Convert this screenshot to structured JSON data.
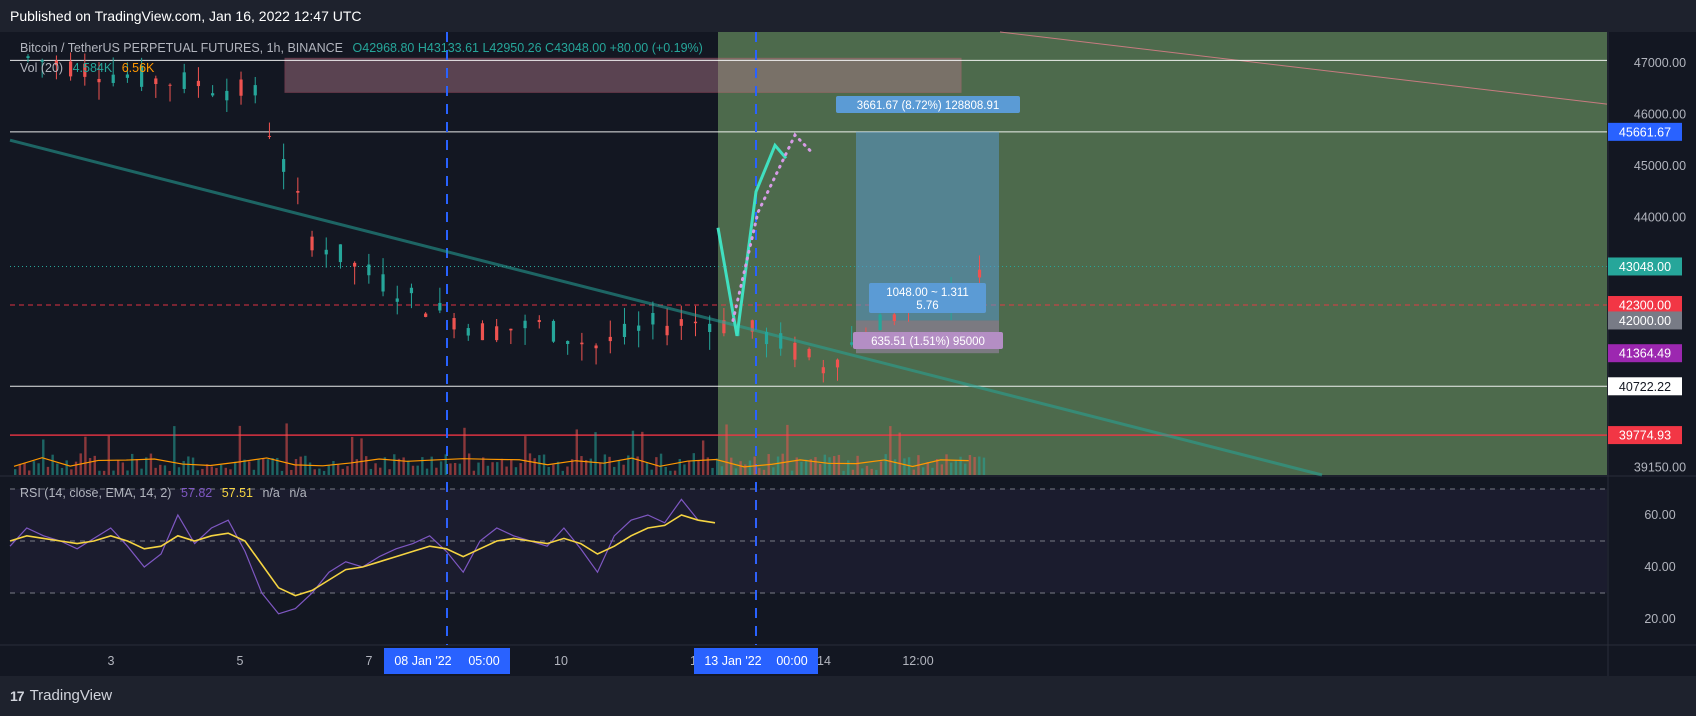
{
  "header": {
    "published": "Published on TradingView.com, Jan 16, 2022 12:47 UTC"
  },
  "footer": {
    "brand": "TradingView"
  },
  "legend": {
    "symbol": "Bitcoin / TetherUS PERPETUAL FUTURES, 1h, BINANCE",
    "ohlc": "O42968.80 H43133.61 L42950.26 C43048.00 +80.00 (+0.19%)",
    "vol_label": "Vol (20)",
    "vol_value": "4.584K",
    "vol_ma": "6.56K"
  },
  "rsi_legend": {
    "label": "RSI (14, close, EMA, 14, 2)",
    "rsi_value": "57.82",
    "ma_value": "57.51",
    "na1": "n/a",
    "na2": "n/a"
  },
  "chart_data": [
    {
      "type": "candlestick",
      "title": "Bitcoin / TetherUS PERPETUAL FUTURES, 1h, BINANCE",
      "y_ticks": [
        "47000.00",
        "46000.00",
        "45000.00",
        "44000.00",
        "39150.00"
      ],
      "ylim": [
        39000,
        47600
      ],
      "x_ticks": [
        "3",
        "5",
        "7",
        "10",
        "14",
        "12:00"
      ],
      "x_highlight_labels": [
        "08 Jan '22",
        "05:00",
        "13 Jan '22",
        "00:00"
      ],
      "hidden_tick_fragments": [
        "2",
        "12"
      ],
      "price_tags": [
        {
          "value": "45661.67",
          "color": "#2962ff"
        },
        {
          "value": "43048.00",
          "color": "#26a69a"
        },
        {
          "value": "42300.00",
          "color": "#f23645"
        },
        {
          "value": "42000.00",
          "color": "#787b86"
        },
        {
          "value": "41364.49",
          "color": "#9c27b0"
        },
        {
          "value": "40722.22",
          "color": "#ffffff"
        },
        {
          "value": "39774.93",
          "color": "#f23645"
        }
      ],
      "horizontal_levels": [
        47050,
        45661.67,
        42300,
        40722.22,
        39774.93
      ],
      "trendline": {
        "from": {
          "x": "Jan 2",
          "y": 45500
        },
        "to": {
          "x": "Jan 16",
          "y": 39200
        }
      },
      "annotations": {
        "measure_top": "3661.67 (8.72%) 128808.91",
        "measure_mid": "1048.00 ~ 1.311",
        "measure_mid2": "5.76",
        "measure_bottom": "635.51 (1.51%) 95000"
      },
      "price_path_x": [
        "Jan 2",
        "Jan 3",
        "Jan 4",
        "Jan 5",
        "Jan 5 12h",
        "Jan 6",
        "Jan 6 12h",
        "Jan 7",
        "Jan 7 12h",
        "Jan 8",
        "Jan 8 12h",
        "Jan 9",
        "Jan 9 12h",
        "Jan 10",
        "Jan 10 12h",
        "Jan 11",
        "Jan 11 12h",
        "Jan 12",
        "Jan 12 12h",
        "Jan 13",
        "Jan 13 12h",
        "Jan 14",
        "Jan 14 12h",
        "Jan 15",
        "Jan 15 12h",
        "Jan 16"
      ],
      "price_path_y": [
        47100,
        46900,
        46700,
        46600,
        46400,
        43600,
        42900,
        42300,
        41800,
        41900,
        41500,
        41900,
        42000,
        41700,
        41100,
        42000,
        42400,
        42900,
        43100,
        43600,
        44000,
        42700,
        42200,
        43200,
        43400,
        43050
      ],
      "colors": {
        "up": "#26a69a",
        "down": "#ef5350",
        "green_zone": "#5a7d55",
        "measure": "#5b9bd5"
      }
    },
    {
      "type": "line",
      "title": "RSI (14, close, EMA, 14, 2)",
      "y_ticks": [
        "60.00",
        "40.00",
        "20.00"
      ],
      "ylim": [
        10,
        75
      ],
      "bands": [
        70,
        50,
        30
      ],
      "series": [
        {
          "name": "RSI",
          "color": "#7e57c2",
          "values": [
            48,
            55,
            52,
            50,
            47,
            51,
            55,
            48,
            40,
            45,
            60,
            49,
            55,
            58,
            46,
            30,
            22,
            24,
            30,
            38,
            42,
            40,
            44,
            47,
            49,
            52,
            46,
            38,
            50,
            55,
            52,
            50,
            48,
            55,
            47,
            38,
            52,
            58,
            60,
            57,
            66,
            58,
            57
          ]
        },
        {
          "name": "EMA",
          "color": "#f5d442",
          "values": [
            50,
            52,
            51,
            50,
            49,
            50,
            52,
            50,
            47,
            48,
            52,
            50,
            52,
            53,
            50,
            41,
            32,
            29,
            31,
            35,
            39,
            40,
            42,
            44,
            46,
            48,
            47,
            44,
            47,
            50,
            51,
            50,
            49,
            51,
            49,
            45,
            48,
            52,
            55,
            56,
            60,
            58,
            57
          ]
        }
      ]
    }
  ]
}
